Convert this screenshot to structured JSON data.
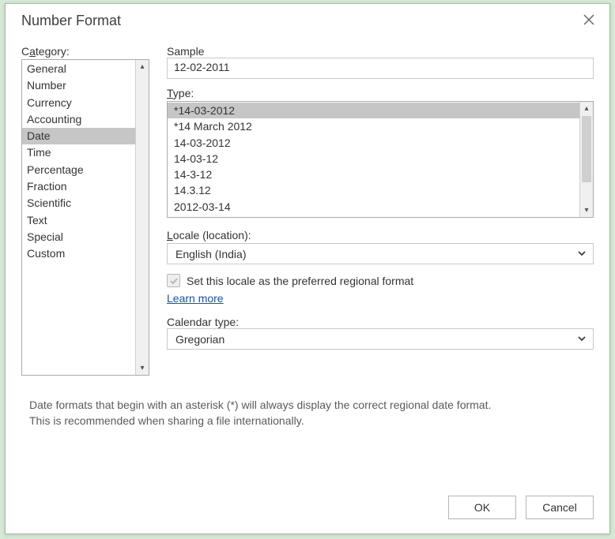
{
  "dialog": {
    "title": "Number Format",
    "close_icon": "close"
  },
  "category": {
    "label_pre": "C",
    "label_ul": "a",
    "label_post": "tegory:",
    "items": [
      "General",
      "Number",
      "Currency",
      "Accounting",
      "Date",
      "Time",
      "Percentage",
      "Fraction",
      "Scientific",
      "Text",
      "Special",
      "Custom"
    ],
    "selected_index": 4
  },
  "sample": {
    "label": "Sample",
    "value": "12-02-2011"
  },
  "type": {
    "label_ul": "T",
    "label_post": "ype:",
    "items": [
      "*14-03-2012",
      "*14 March 2012",
      "14-03-2012",
      "14-03-12",
      "14-3-12",
      "14.3.12",
      "2012-03-14"
    ],
    "selected_index": 0
  },
  "locale": {
    "label_pre": "",
    "label_ul": "L",
    "label_post": "ocale (location):",
    "value": "English (India)"
  },
  "checkbox": {
    "label": "Set this locale as the preferred regional format",
    "checked": true,
    "disabled": true
  },
  "learn_more": "Learn more",
  "calendar": {
    "label": "Calendar type:",
    "value": "Gregorian"
  },
  "hint": {
    "line1": "Date formats that begin with an asterisk (*) will always display the correct regional date format.",
    "line2": "This is recommended when sharing a file internationally."
  },
  "buttons": {
    "ok": "OK",
    "cancel": "Cancel"
  },
  "colors": {
    "accent": "#1a4fb3",
    "selection": "#c6c6c6",
    "border": "#ababab"
  }
}
